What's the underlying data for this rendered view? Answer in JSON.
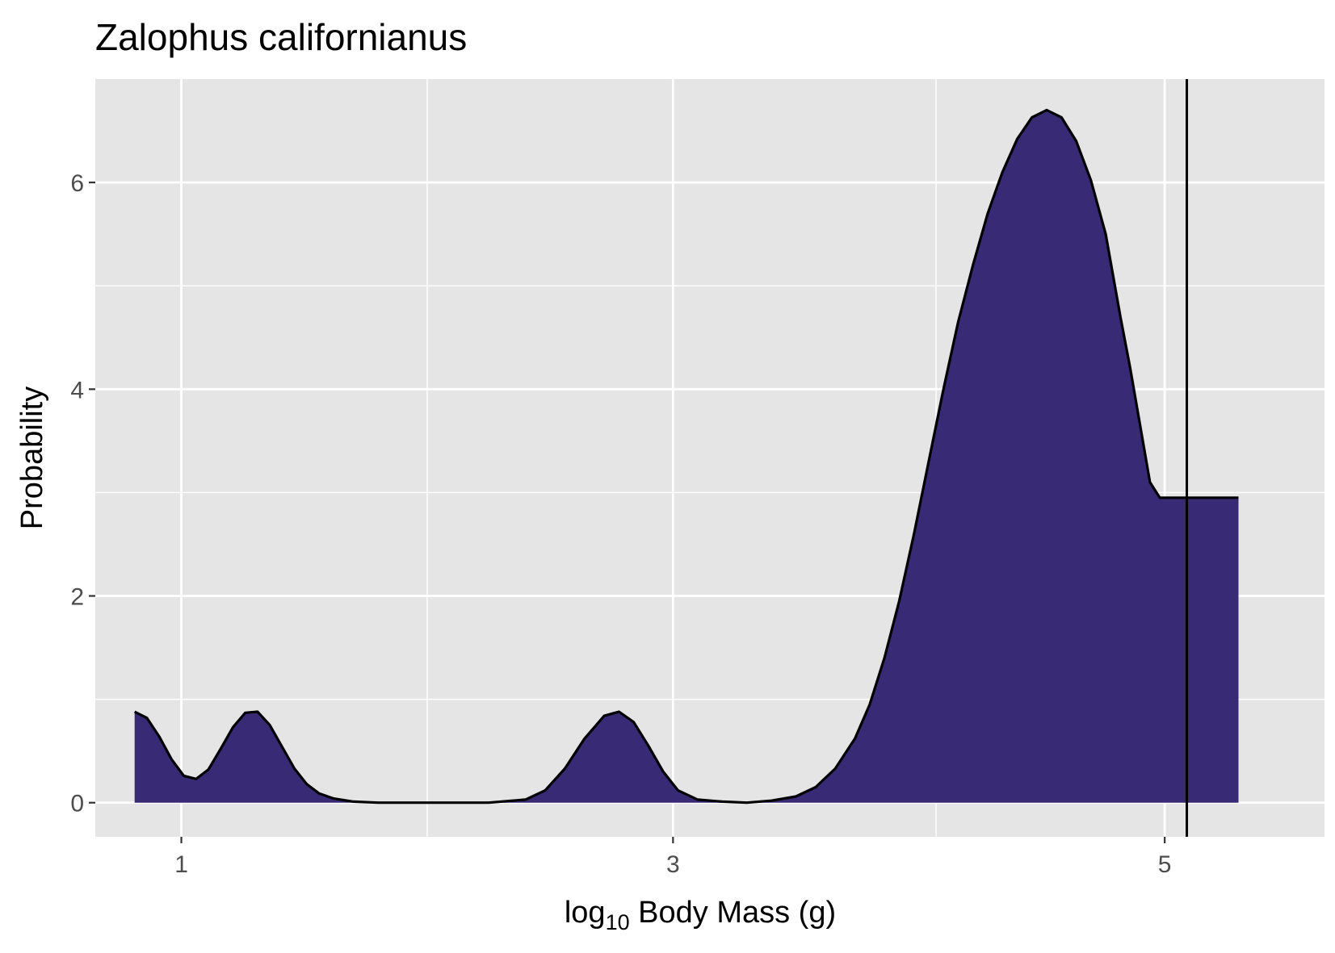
{
  "chart_data": {
    "type": "area",
    "title": "Zalophus californianus",
    "xlabel": {
      "prefix": "log",
      "subscript": "10",
      "suffix": " Body Mass (g)"
    },
    "ylabel": "Probability",
    "xlim": [
      0.65,
      5.65
    ],
    "ylim": [
      -0.33,
      7.0
    ],
    "x_ticks": [
      {
        "value": 1,
        "label": "1"
      },
      {
        "value": 3,
        "label": "3"
      },
      {
        "value": 5,
        "label": "5"
      }
    ],
    "x_minor_gridlines": [
      2.0,
      4.07
    ],
    "y_ticks": [
      {
        "value": 0,
        "label": "0"
      },
      {
        "value": 2,
        "label": "2"
      },
      {
        "value": 4,
        "label": "4"
      },
      {
        "value": 6,
        "label": "6"
      }
    ],
    "y_minor_gridlines": [
      1,
      3,
      5
    ],
    "grid": true,
    "legend": "none",
    "series": [
      {
        "x": [
          0.81,
          0.86,
          0.91,
          0.96,
          1.01,
          1.06,
          1.11,
          1.16,
          1.21,
          1.26,
          1.31,
          1.36,
          1.41,
          1.46,
          1.51,
          1.56,
          1.62,
          1.7,
          1.8,
          1.95,
          2.1,
          2.25,
          2.4,
          2.48,
          2.56,
          2.64,
          2.72,
          2.78,
          2.84,
          2.9,
          2.96,
          3.02,
          3.1,
          3.2,
          3.3,
          3.4,
          3.5,
          3.58,
          3.66,
          3.74,
          3.8,
          3.86,
          3.92,
          3.98,
          4.04,
          4.1,
          4.16,
          4.22,
          4.28,
          4.34,
          4.4,
          4.46,
          4.52,
          4.58,
          4.64,
          4.7,
          4.76,
          4.79,
          4.82,
          4.86,
          4.9,
          4.94,
          4.98,
          5.02,
          5.06,
          5.1,
          5.14,
          5.18,
          5.22,
          5.26,
          5.3
        ],
        "y": [
          0.88,
          0.82,
          0.64,
          0.42,
          0.26,
          0.23,
          0.32,
          0.52,
          0.73,
          0.87,
          0.88,
          0.75,
          0.54,
          0.33,
          0.18,
          0.09,
          0.04,
          0.01,
          0.0,
          0.0,
          0.0,
          0.0,
          0.03,
          0.12,
          0.33,
          0.62,
          0.84,
          0.88,
          0.78,
          0.55,
          0.3,
          0.12,
          0.03,
          0.01,
          0.0,
          0.02,
          0.06,
          0.15,
          0.33,
          0.62,
          0.95,
          1.4,
          1.95,
          2.6,
          3.3,
          4.0,
          4.65,
          5.2,
          5.7,
          6.1,
          6.42,
          6.63,
          6.7,
          6.63,
          6.4,
          6.02,
          5.5,
          5.1,
          4.7,
          4.2,
          3.65,
          3.1,
          2.95,
          2.95,
          2.95,
          2.95,
          2.95,
          2.95,
          2.95,
          2.95,
          2.95
        ]
      }
    ],
    "vertical_line_x": 5.09,
    "colors": {
      "fill": "#382A75",
      "curve": "#000000",
      "panel": "#E5E5E5",
      "gridline": "#FFFFFF",
      "tick_label": "#4D4D4D"
    }
  }
}
